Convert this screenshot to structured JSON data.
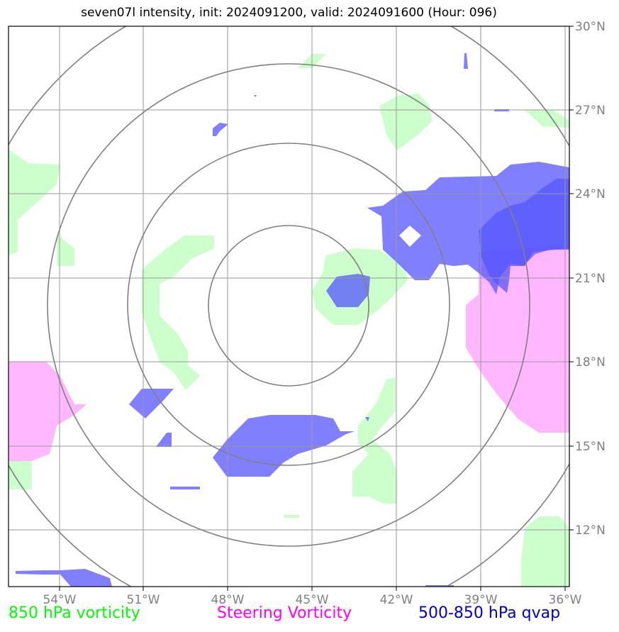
{
  "title": "seven07l intensity, init: 2024091200, valid: 2024091600 (Hour: 096)",
  "map": {
    "lon_ticks": [
      "54°W",
      "51°W",
      "48°W",
      "45°W",
      "42°W",
      "39°W",
      "36°W"
    ],
    "lat_ticks": [
      "30°N",
      "27°N",
      "24°N",
      "21°N",
      "18°N",
      "15°N",
      "12°N"
    ],
    "lon_range": [
      -55.8,
      -35.9
    ],
    "lat_range": [
      10.0,
      30.0
    ],
    "range_rings_center": {
      "lon": -45.8,
      "lat": 20.0
    },
    "colors": {
      "vorticity_850": "#ccffcc",
      "steering_vorticity": "#ff99ff",
      "qvap": "#5555ff",
      "gridline": "#999999",
      "ring": "#808080"
    }
  },
  "legend": {
    "vorticity_850": {
      "label": "850 hPa vorticity",
      "color": "#00ff00"
    },
    "steering_vorticity": {
      "label": "Steering Vorticity",
      "color": "#ff00ff"
    },
    "qvap": {
      "label": "500-850 hPa qvap",
      "color": "#0000cc"
    }
  }
}
